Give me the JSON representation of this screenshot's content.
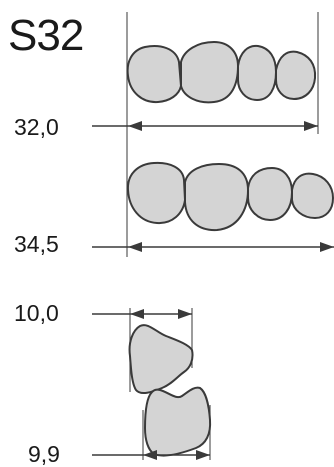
{
  "model": "S32",
  "dimensions": {
    "upper_width": "32,0",
    "lower_width": "34,5",
    "side_upper": "10,0",
    "side_lower": "9,9"
  },
  "colors": {
    "tooth_fill": "#d4d4d4",
    "tooth_outline": "#3a3a3a",
    "text": "#1a1a1a"
  }
}
